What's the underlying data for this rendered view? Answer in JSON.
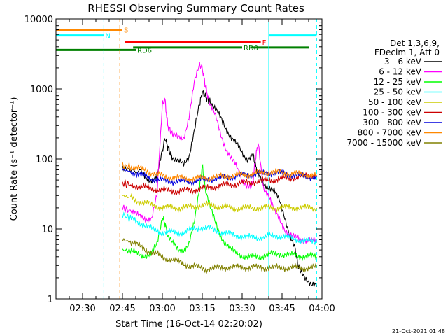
{
  "chart_data": {
    "type": "line",
    "title": "RHESSI Observing Summary Count Rates",
    "xlabel": "Start Time (16-Oct-14 02:20:02)",
    "ylabel": "Count Rate (s⁻¹ detector⁻¹)",
    "y_scale": "log",
    "ylim": [
      1,
      10000
    ],
    "x_range_minutes": [
      0,
      100
    ],
    "x_ticks": [
      {
        "t": 10,
        "label": "02:30"
      },
      {
        "t": 25,
        "label": "02:45"
      },
      {
        "t": 40,
        "label": "03:00"
      },
      {
        "t": 55,
        "label": "03:15"
      },
      {
        "t": 70,
        "label": "03:30"
      },
      {
        "t": 85,
        "label": "03:45"
      },
      {
        "t": 100,
        "label": "04:00"
      }
    ],
    "y_ticks": [
      {
        "v": 1,
        "label": "1"
      },
      {
        "v": 10,
        "label": "10"
      },
      {
        "v": 100,
        "label": "100"
      },
      {
        "v": 1000,
        "label": "1000"
      },
      {
        "v": 10000,
        "label": "10000"
      }
    ],
    "legend_header": [
      "Det 1,3,6,9,",
      "FDecim 1, Att 0"
    ],
    "legend_position": "right",
    "timestamp": "21-Oct-2021 01:48",
    "series": [
      {
        "name": "3 - 6 keV",
        "color": "#000000",
        "x": [
          25,
          28,
          32,
          34,
          36,
          38,
          40,
          41,
          42,
          43,
          44,
          46,
          48,
          50,
          52,
          54,
          55,
          56,
          57,
          58,
          60,
          62,
          64,
          66,
          68,
          70,
          72,
          74,
          75,
          76,
          78,
          80,
          82,
          84,
          86,
          88,
          90,
          91,
          92,
          94,
          96,
          98
        ],
        "y": [
          75,
          70,
          62,
          55,
          50,
          55,
          130,
          200,
          150,
          120,
          100,
          90,
          85,
          110,
          250,
          600,
          900,
          800,
          700,
          650,
          500,
          380,
          270,
          200,
          160,
          120,
          100,
          120,
          80,
          60,
          45,
          40,
          35,
          25,
          15,
          8,
          5,
          3,
          2.5,
          2,
          1.6,
          1.5
        ]
      },
      {
        "name": "6 - 12 keV",
        "color": "#ff00ff",
        "x": [
          25,
          28,
          30,
          32,
          34,
          36,
          38,
          40,
          41,
          42,
          43,
          44,
          46,
          48,
          50,
          52,
          54,
          55,
          56,
          57,
          58,
          60,
          62,
          64,
          66,
          68,
          70,
          72,
          73,
          74,
          75,
          76,
          78,
          80,
          82,
          84,
          86,
          88,
          90,
          92,
          94,
          96,
          98
        ],
        "y": [
          20,
          18,
          16,
          15,
          14,
          14,
          30,
          600,
          700,
          300,
          250,
          220,
          200,
          200,
          400,
          1200,
          2200,
          2000,
          1200,
          800,
          600,
          400,
          220,
          140,
          100,
          75,
          50,
          42,
          40,
          45,
          100,
          170,
          40,
          30,
          18,
          14,
          10,
          8,
          7.5,
          7.2,
          7,
          6.8,
          6.5
        ]
      },
      {
        "name": "12 - 25 keV",
        "color": "#00ff00",
        "x": [
          25,
          28,
          30,
          32,
          34,
          36,
          38,
          40,
          41,
          42,
          44,
          46,
          48,
          50,
          52,
          54,
          55,
          56,
          58,
          60,
          62,
          64,
          66,
          68,
          70,
          72,
          74,
          76,
          78,
          80,
          82,
          84,
          86,
          88,
          90,
          92,
          94,
          96,
          98
        ],
        "y": [
          5,
          4.8,
          4.5,
          4.3,
          4.2,
          4.4,
          6,
          15,
          12,
          8,
          6,
          5,
          5,
          6,
          12,
          40,
          80,
          40,
          20,
          12,
          8,
          6,
          5,
          4.5,
          4.2,
          4,
          4,
          4,
          4.2,
          4.3,
          4.4,
          4.4,
          4.3,
          4.2,
          4.2,
          4.1,
          4,
          4,
          4
        ]
      },
      {
        "name": "25 - 50 keV",
        "color": "#00ffff",
        "x": [
          25,
          28,
          30,
          32,
          34,
          36,
          38,
          40,
          42,
          44,
          46,
          48,
          50,
          52,
          54,
          56,
          58,
          60,
          62,
          64,
          66,
          68,
          70,
          72,
          74,
          76,
          78,
          80,
          82,
          84,
          86,
          88,
          90,
          92,
          94,
          96,
          98
        ],
        "y": [
          16,
          14,
          13,
          12,
          11,
          10,
          9.5,
          9,
          9,
          9,
          9,
          9,
          9.5,
          10,
          10.5,
          10.5,
          10,
          9.5,
          9,
          8.5,
          8.2,
          8,
          7.8,
          7.6,
          7.5,
          7.5,
          7.6,
          7.8,
          8,
          8,
          7.8,
          7.5,
          7.2,
          7,
          6.8,
          6.6,
          6.5
        ]
      },
      {
        "name": "50 - 100 keV",
        "color": "#cccc00",
        "x": [
          25,
          28,
          30,
          32,
          34,
          36,
          38,
          40,
          42,
          44,
          46,
          48,
          50,
          52,
          54,
          56,
          58,
          60,
          62,
          64,
          66,
          68,
          70,
          72,
          74,
          76,
          78,
          80,
          82,
          84,
          86,
          88,
          90,
          92,
          94,
          96,
          98
        ],
        "y": [
          30,
          28,
          26,
          24,
          23,
          22,
          21,
          20,
          20,
          20,
          20,
          20,
          20.5,
          21,
          21.5,
          22,
          22,
          21.5,
          21,
          20.5,
          20,
          20,
          20,
          20,
          20,
          20,
          20,
          20,
          20,
          20,
          20,
          20,
          20,
          20,
          20,
          20,
          20
        ]
      },
      {
        "name": "100 - 300 keV",
        "color": "#cc0000",
        "x": [
          25,
          28,
          30,
          32,
          34,
          36,
          38,
          40,
          42,
          44,
          46,
          48,
          50,
          52,
          54,
          56,
          58,
          60,
          62,
          64,
          66,
          68,
          70,
          72,
          74,
          76,
          78,
          80,
          82,
          84,
          86,
          88,
          90,
          92,
          94,
          96,
          98
        ],
        "y": [
          45,
          43,
          42,
          40,
          39,
          38,
          37,
          36,
          35.5,
          35,
          35,
          35,
          35.5,
          36,
          37,
          38,
          39,
          40,
          41,
          42,
          43,
          44,
          45,
          46,
          47,
          48,
          49,
          50,
          51,
          52,
          53,
          54,
          55,
          56,
          57,
          58,
          59
        ]
      },
      {
        "name": "300 - 800 keV",
        "color": "#0000dd",
        "x": [
          25,
          28,
          30,
          32,
          34,
          36,
          38,
          40,
          42,
          44,
          46,
          48,
          50,
          52,
          54,
          56,
          58,
          60,
          62,
          64,
          66,
          68,
          70,
          72,
          74,
          76,
          78,
          80,
          82,
          84,
          86,
          88,
          90,
          92,
          94,
          96,
          98
        ],
        "y": [
          70,
          66,
          62,
          58,
          55,
          52,
          50,
          49,
          48.5,
          48,
          48,
          48,
          48.5,
          49,
          50,
          51,
          52,
          53,
          54,
          55,
          56,
          57,
          58,
          59,
          60,
          61,
          62,
          63,
          63,
          62,
          61,
          60,
          59,
          58,
          57,
          56,
          55
        ]
      },
      {
        "name": "800 - 7000 keV",
        "color": "#ff8800",
        "x": [
          25,
          28,
          30,
          32,
          34,
          36,
          38,
          40,
          42,
          44,
          46,
          48,
          50,
          52,
          54,
          56,
          58,
          60,
          62,
          64,
          66,
          68,
          70,
          72,
          74,
          76,
          78,
          80,
          82,
          84,
          86,
          88,
          90,
          92,
          94,
          96,
          98
        ],
        "y": [
          80,
          78,
          75,
          72,
          68,
          64,
          60,
          57,
          55,
          54,
          53,
          52.5,
          52,
          52,
          52.5,
          53,
          54,
          55,
          56,
          57,
          58,
          59,
          60,
          61,
          62,
          63,
          64,
          65,
          65,
          64,
          63,
          62,
          61,
          60,
          59,
          58,
          57
        ]
      },
      {
        "name": "7000 - 15000 keV",
        "color": "#808000",
        "x": [
          25,
          28,
          30,
          32,
          34,
          36,
          38,
          40,
          42,
          44,
          46,
          48,
          50,
          52,
          54,
          56,
          58,
          60,
          62,
          64,
          66,
          68,
          70,
          72,
          74,
          76,
          78,
          80,
          82,
          84,
          86,
          88,
          90,
          92,
          94,
          96,
          98
        ],
        "y": [
          7,
          6.5,
          6,
          5.5,
          5,
          4.6,
          4.3,
          4,
          3.8,
          3.6,
          3.4,
          3.2,
          3,
          2.9,
          2.8,
          2.7,
          2.7,
          2.7,
          2.8,
          2.8,
          2.8,
          2.8,
          2.8,
          2.8,
          2.8,
          2.8,
          2.8,
          2.8,
          2.8,
          2.8,
          2.8,
          2.8,
          2.8,
          2.8,
          2.8,
          2.8,
          2.8
        ]
      }
    ],
    "flags": [
      {
        "label": "S",
        "color": "#ff8800",
        "level": 7000,
        "segments": [
          [
            0,
            25
          ]
        ]
      },
      {
        "label": "N",
        "color": "#00ffff",
        "level": 5800,
        "segments": [
          [
            0,
            18
          ],
          [
            80,
            98
          ]
        ]
      },
      {
        "label": "F",
        "color": "#ff0000",
        "level": 4700,
        "segments": [
          [
            26,
            77
          ]
        ]
      },
      {
        "label": "RD0",
        "color": "#008000",
        "level": 3900,
        "segments": [
          [
            29,
            70
          ],
          [
            73,
            95
          ]
        ]
      },
      {
        "label": "RD6",
        "color": "#008000",
        "level": 3600,
        "segments": [
          [
            0,
            30
          ]
        ]
      }
    ],
    "vertical_markers": [
      {
        "t": 0,
        "color": "#00ffff",
        "style": "solid"
      },
      {
        "t": 18,
        "color": "#00ffff",
        "style": "dashed"
      },
      {
        "t": 24,
        "color": "#ff8800",
        "style": "dashed"
      },
      {
        "t": 80,
        "color": "#00ffff",
        "style": "solid"
      },
      {
        "t": 98,
        "color": "#00ffff",
        "style": "dashed"
      }
    ]
  }
}
